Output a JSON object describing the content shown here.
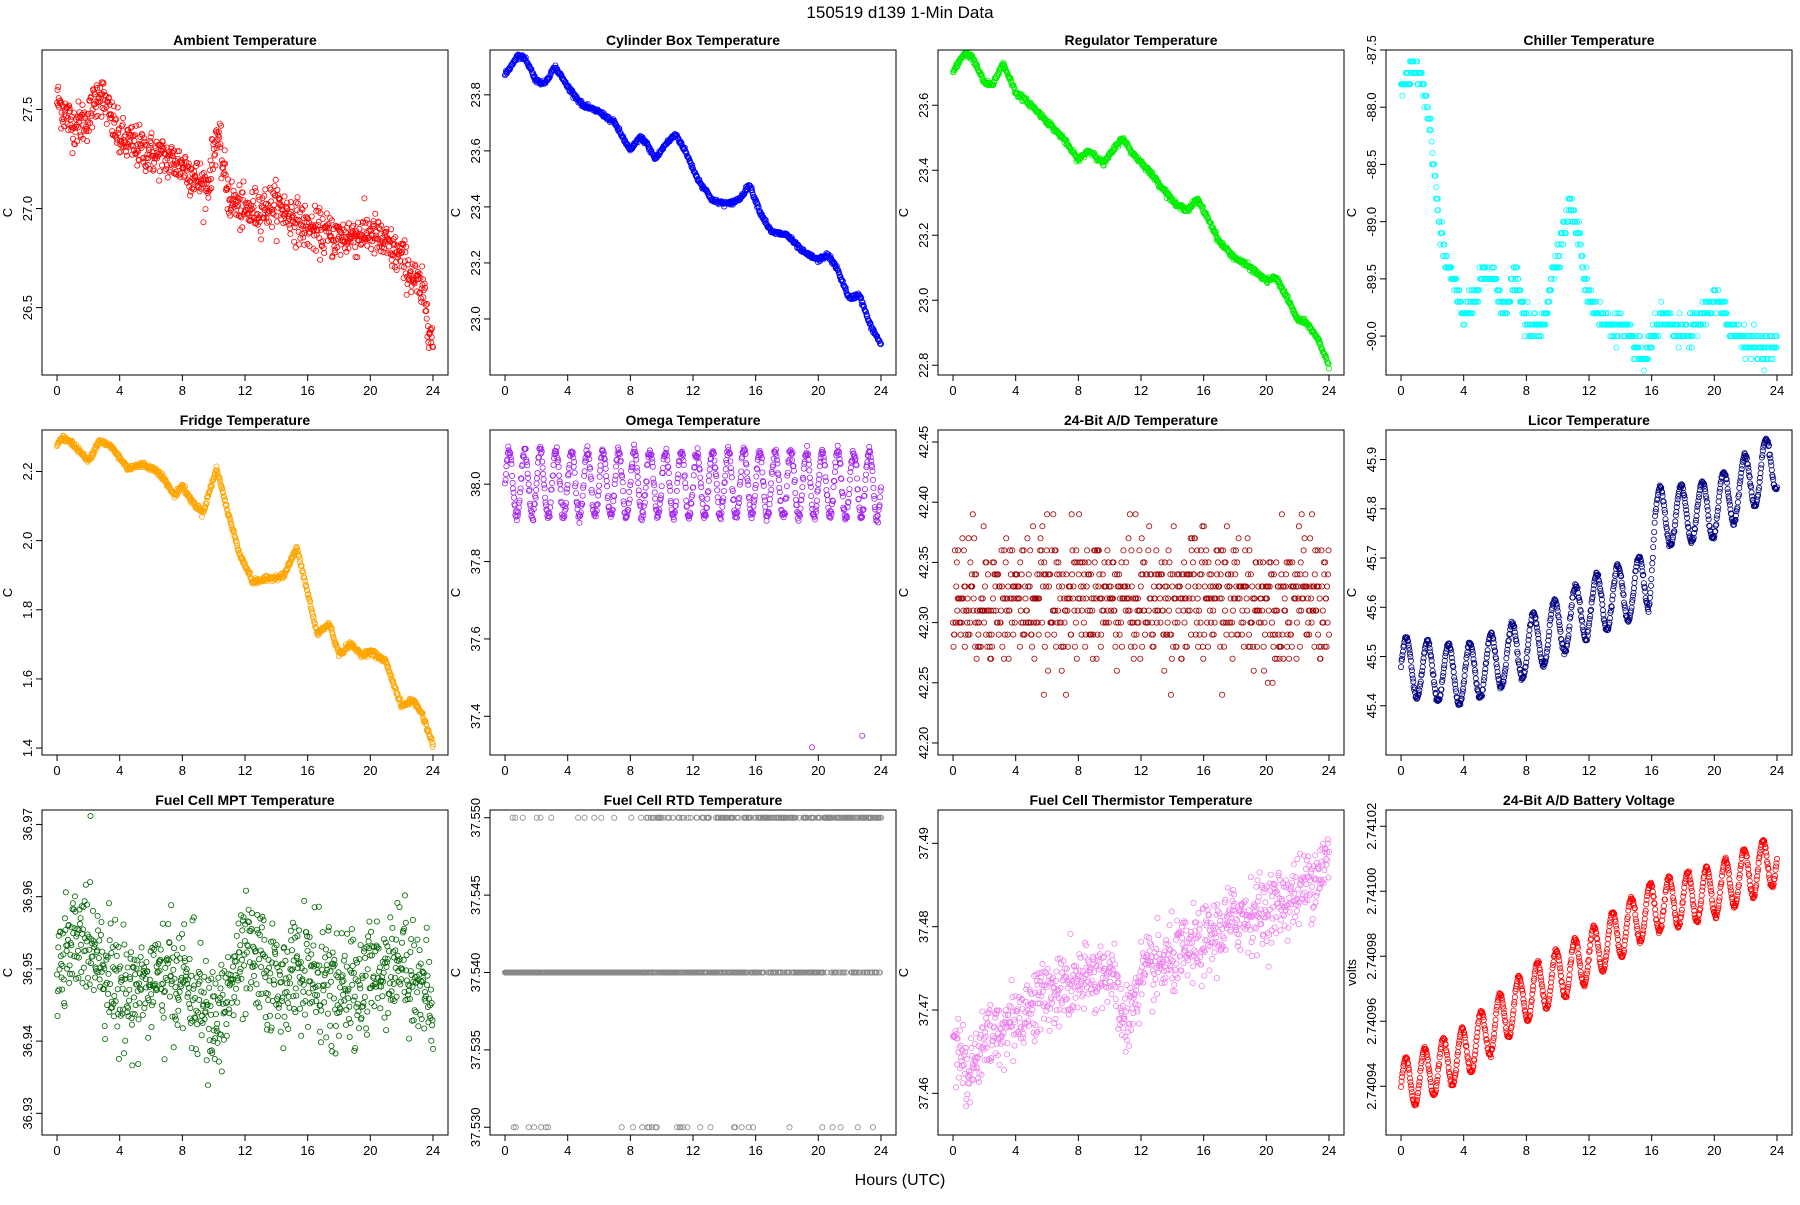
{
  "figure": {
    "suptitle": "150519   d139   1-Min Data",
    "xlabel": "Hours (UTC)"
  },
  "chart_data": [
    {
      "type": "scatter",
      "title": "Ambient Temperature",
      "ylabel": "C",
      "color": "#ff0000",
      "xlim": [
        0,
        24
      ],
      "xticks": [
        0,
        4,
        8,
        12,
        16,
        20,
        24
      ],
      "ylim": [
        26.16,
        27.8
      ],
      "yticks": [
        "26.5",
        "27.0",
        "27.5"
      ],
      "yticks_v": [
        26.5,
        27.0,
        27.5
      ],
      "pattern": "noisy",
      "noise": 0.09,
      "curve_x": [
        0,
        1,
        2,
        2.7,
        4,
        6,
        8,
        9.6,
        10.2,
        11,
        12,
        14,
        16,
        18,
        20,
        22,
        23.5,
        24
      ],
      "curve_y": [
        27.55,
        27.42,
        27.45,
        27.6,
        27.35,
        27.28,
        27.22,
        27.1,
        27.38,
        27.05,
        26.98,
        27.02,
        26.9,
        26.85,
        26.88,
        26.75,
        26.55,
        26.3
      ]
    },
    {
      "type": "scatter",
      "title": "Cylinder Box Temperature",
      "ylabel": "C",
      "color": "#0000ff",
      "xlim": [
        0,
        24
      ],
      "xticks": [
        0,
        4,
        8,
        12,
        16,
        20,
        24
      ],
      "ylim": [
        22.8,
        23.96
      ],
      "yticks": [
        "23.0",
        "23.2",
        "23.4",
        "23.6",
        "23.8"
      ],
      "yticks_v": [
        23.0,
        23.2,
        23.4,
        23.6,
        23.8
      ],
      "pattern": "smooth",
      "noise": 0.004,
      "curve_x": [
        0,
        0.8,
        1.3,
        2,
        2.5,
        3.2,
        4,
        5,
        6,
        7,
        8,
        8.6,
        9,
        9.6,
        10.2,
        10.9,
        11.5,
        12.3,
        13.3,
        14.3,
        15,
        15.6,
        16.3,
        17,
        18,
        19,
        20,
        20.6,
        21.2,
        22,
        22.6,
        23.3,
        24
      ],
      "curve_y": [
        23.87,
        23.94,
        23.93,
        23.85,
        23.84,
        23.9,
        23.83,
        23.76,
        23.74,
        23.7,
        23.6,
        23.65,
        23.63,
        23.57,
        23.62,
        23.66,
        23.6,
        23.5,
        23.42,
        23.41,
        23.43,
        23.48,
        23.38,
        23.31,
        23.3,
        23.24,
        23.21,
        23.23,
        23.18,
        23.07,
        23.09,
        22.98,
        22.91
      ]
    },
    {
      "type": "scatter",
      "title": "Regulator Temperature",
      "ylabel": "C",
      "color": "#00ee00",
      "xlim": [
        0,
        24
      ],
      "xticks": [
        0,
        4,
        8,
        12,
        16,
        20,
        24
      ],
      "ylim": [
        22.77,
        23.77
      ],
      "yticks": [
        "22.8",
        "23.0",
        "23.2",
        "23.4",
        "23.6"
      ],
      "yticks_v": [
        22.8,
        23.0,
        23.2,
        23.4,
        23.6
      ],
      "pattern": "smooth",
      "noise": 0.004,
      "curve_x": [
        0,
        0.7,
        1.2,
        2,
        2.5,
        3.2,
        4,
        5,
        6,
        7,
        8,
        8.6,
        9,
        9.6,
        10.2,
        10.8,
        11.5,
        12.3,
        13.3,
        14.3,
        15,
        15.6,
        16.3,
        17,
        18,
        19,
        20,
        20.6,
        21.2,
        22,
        22.6,
        23.3,
        24
      ],
      "curve_y": [
        23.7,
        23.76,
        23.75,
        23.67,
        23.66,
        23.73,
        23.64,
        23.6,
        23.55,
        23.5,
        23.43,
        23.46,
        23.45,
        23.42,
        23.46,
        23.5,
        23.45,
        23.41,
        23.35,
        23.29,
        23.28,
        23.31,
        23.25,
        23.18,
        23.13,
        23.1,
        23.06,
        23.07,
        23.02,
        22.94,
        22.93,
        22.88,
        22.8
      ]
    },
    {
      "type": "scatter",
      "title": "Chiller Temperature",
      "ylabel": "C",
      "color": "#00ffff",
      "xlim": [
        0,
        24
      ],
      "xticks": [
        0,
        4,
        8,
        12,
        16,
        20,
        24
      ],
      "ylim": [
        -90.34,
        -87.5
      ],
      "yticks": [
        "-90.0",
        "-89.5",
        "-89.0",
        "-88.5",
        "-88.0",
        "-87.5"
      ],
      "yticks_v": [
        -90.0,
        -89.5,
        -89.0,
        -88.5,
        -88.0,
        -87.5
      ],
      "pattern": "quantized",
      "step": 0.1,
      "noise": 0.1,
      "curve_x": [
        0,
        0.5,
        1,
        1.5,
        2,
        2.5,
        3,
        3.5,
        4,
        4.7,
        5.3,
        6,
        6.7,
        7.3,
        8,
        9,
        9.6,
        10.2,
        10.8,
        11.3,
        11.8,
        12.5,
        13,
        14,
        15,
        15.5,
        16,
        16.5,
        17,
        18,
        19,
        20,
        20.6,
        21.2,
        22,
        23,
        24
      ],
      "curve_y": [
        -87.8,
        -87.75,
        -87.65,
        -87.8,
        -88.4,
        -89.1,
        -89.4,
        -89.6,
        -89.8,
        -89.7,
        -89.45,
        -89.5,
        -89.8,
        -89.45,
        -89.9,
        -89.95,
        -89.5,
        -89.15,
        -88.85,
        -89.1,
        -89.55,
        -89.8,
        -89.9,
        -89.9,
        -90.1,
        -90.2,
        -90.05,
        -89.85,
        -89.9,
        -90.0,
        -89.9,
        -89.65,
        -89.8,
        -89.95,
        -90.05,
        -90.1,
        -90.1
      ]
    },
    {
      "type": "scatter",
      "title": "Fridge Temperature",
      "ylabel": "C",
      "color": "#ffa500",
      "xlim": [
        0,
        24
      ],
      "xticks": [
        0,
        4,
        8,
        12,
        16,
        20,
        24
      ],
      "ylim": [
        1.38,
        2.32
      ],
      "yticks": [
        "1.4",
        "1.6",
        "1.8",
        "2.0",
        "2.2"
      ],
      "yticks_v": [
        1.4,
        1.6,
        1.8,
        2.0,
        2.2
      ],
      "pattern": "smooth",
      "noise": 0.004,
      "curve_x": [
        0,
        0.4,
        1,
        2,
        2.7,
        3.5,
        4.5,
        5.5,
        6.5,
        7.5,
        8,
        8.5,
        9.3,
        10.2,
        10.8,
        11.6,
        12.5,
        13.5,
        14.5,
        15.3,
        16,
        16.6,
        17.4,
        18,
        18.7,
        19.5,
        20,
        21,
        22,
        22.7,
        23.3,
        24
      ],
      "curve_y": [
        2.28,
        2.3,
        2.28,
        2.23,
        2.29,
        2.27,
        2.21,
        2.22,
        2.2,
        2.13,
        2.16,
        2.12,
        2.08,
        2.21,
        2.1,
        1.97,
        1.88,
        1.89,
        1.9,
        1.98,
        1.85,
        1.73,
        1.76,
        1.67,
        1.7,
        1.67,
        1.68,
        1.65,
        1.52,
        1.54,
        1.5,
        1.41
      ]
    },
    {
      "type": "scatter",
      "title": "Omega Temperature",
      "ylabel": "C",
      "color": "#a020f0",
      "xlim": [
        0,
        24
      ],
      "xticks": [
        0,
        4,
        8,
        12,
        16,
        20,
        24
      ],
      "ylim": [
        37.3,
        38.14
      ],
      "yticks": [
        "37.4",
        "37.6",
        "37.8",
        "38.0"
      ],
      "yticks_v": [
        37.4,
        37.6,
        37.8,
        38.0
      ],
      "pattern": "oscillating",
      "noise": 0.012,
      "curve_x": [
        0,
        24
      ],
      "curve_y": [
        38.0,
        38.0
      ],
      "amp": 0.085,
      "period": 1.0,
      "outliers": [
        [
          19.6,
          37.32
        ],
        [
          22.8,
          37.35
        ]
      ]
    },
    {
      "type": "scatter",
      "title": "24-Bit A/D Temperature",
      "ylabel": "C",
      "color": "#a00000",
      "xlim": [
        0,
        24
      ],
      "xticks": [
        0,
        4,
        8,
        12,
        16,
        20,
        24
      ],
      "ylim": [
        42.19,
        42.46
      ],
      "yticks": [
        "42.20",
        "42.25",
        "42.30",
        "42.35",
        "42.40",
        "42.45"
      ],
      "yticks_v": [
        42.2,
        42.25,
        42.3,
        42.35,
        42.4,
        42.45
      ],
      "pattern": "quantized",
      "step": 0.01,
      "noise": 0.045,
      "curve_x": [
        0,
        24
      ],
      "curve_y": [
        42.32,
        42.32
      ]
    },
    {
      "type": "scatter",
      "title": "Licor Temperature",
      "ylabel": "C",
      "color": "#000080",
      "xlim": [
        0,
        24
      ],
      "xticks": [
        0,
        4,
        8,
        12,
        16,
        20,
        24
      ],
      "ylim": [
        45.3,
        45.96
      ],
      "yticks": [
        "45.4",
        "45.5",
        "45.6",
        "45.7",
        "45.8",
        "45.9"
      ],
      "yticks_v": [
        45.4,
        45.5,
        45.6,
        45.7,
        45.8,
        45.9
      ],
      "pattern": "oscillating",
      "noise": 0.004,
      "curve_x": [
        0,
        4,
        8,
        12,
        15.8,
        16.2,
        20,
        22,
        24
      ],
      "curve_y": [
        45.48,
        45.46,
        45.52,
        45.6,
        45.65,
        45.78,
        45.8,
        45.85,
        45.9
      ],
      "amp": 0.06,
      "period": 1.35
    },
    {
      "type": "scatter",
      "title": "Fuel Cell MPT Temperature",
      "ylabel": "C",
      "color": "#006400",
      "xlim": [
        0,
        24
      ],
      "xticks": [
        0,
        4,
        8,
        12,
        16,
        20,
        24
      ],
      "ylim": [
        36.927,
        36.972
      ],
      "yticks": [
        "36.93",
        "36.94",
        "36.95",
        "36.96",
        "36.97"
      ],
      "yticks_v": [
        36.93,
        36.94,
        36.95,
        36.96,
        36.97
      ],
      "pattern": "noisy",
      "noise": 0.0065,
      "curve_x": [
        0,
        2,
        4,
        6,
        8,
        10,
        12,
        14,
        16,
        18,
        20,
        22,
        24
      ],
      "curve_y": [
        36.95,
        36.955,
        36.947,
        36.948,
        36.949,
        36.942,
        36.952,
        36.948,
        36.95,
        36.946,
        36.949,
        36.952,
        36.945
      ]
    },
    {
      "type": "scatter",
      "title": "Fuel Cell RTD Temperature",
      "ylabel": "C",
      "color": "#888888",
      "xlim": [
        0,
        24
      ],
      "xticks": [
        0,
        4,
        8,
        12,
        16,
        20,
        24
      ],
      "ylim": [
        37.5295,
        37.5505
      ],
      "yticks": [
        "37.530",
        "37.535",
        "37.540",
        "37.545",
        "37.550"
      ],
      "yticks_v": [
        37.53,
        37.535,
        37.54,
        37.545,
        37.55
      ],
      "pattern": "levels",
      "levels": [
        37.53,
        37.54,
        37.55
      ]
    },
    {
      "type": "scatter",
      "title": "Fuel Cell Thermistor Temperature",
      "ylabel": "C",
      "color": "#ee82ee",
      "xlim": [
        0,
        24
      ],
      "xticks": [
        0,
        4,
        8,
        12,
        16,
        20,
        24
      ],
      "ylim": [
        37.455,
        37.494
      ],
      "yticks": [
        "37.46",
        "37.47",
        "37.48",
        "37.49"
      ],
      "yticks_v": [
        37.46,
        37.47,
        37.48,
        37.49
      ],
      "pattern": "noisy",
      "noise": 0.0035,
      "curve_x": [
        0,
        1,
        2,
        4,
        6,
        8,
        10,
        11,
        12,
        14,
        16,
        18,
        20,
        22,
        24
      ],
      "curve_y": [
        37.468,
        37.462,
        37.466,
        37.469,
        37.472,
        37.473,
        37.475,
        37.468,
        37.474,
        37.476,
        37.478,
        37.481,
        37.482,
        37.484,
        37.488
      ]
    },
    {
      "type": "scatter",
      "title": "24-Bit A/D Battery Voltage",
      "ylabel": "volts",
      "color": "#ff0000",
      "xlim": [
        0,
        24
      ],
      "xticks": [
        0,
        4,
        8,
        12,
        16,
        20,
        24
      ],
      "ylim": [
        2.740925,
        2.741025
      ],
      "yticks": [
        "2.74094",
        "2.74096",
        "2.74098",
        "2.74100",
        "2.74102"
      ],
      "yticks_v": [
        2.74094,
        2.74096,
        2.74098,
        2.741,
        2.74102
      ],
      "pattern": "oscillating",
      "noise": 5e-07,
      "curve_x": [
        0,
        4,
        8,
        12,
        16,
        20,
        24
      ],
      "curve_y": [
        2.74094,
        2.74095,
        2.740968,
        2.74098,
        2.740995,
        2.741,
        2.74101
      ],
      "amp": 8e-06,
      "period": 1.2
    }
  ]
}
